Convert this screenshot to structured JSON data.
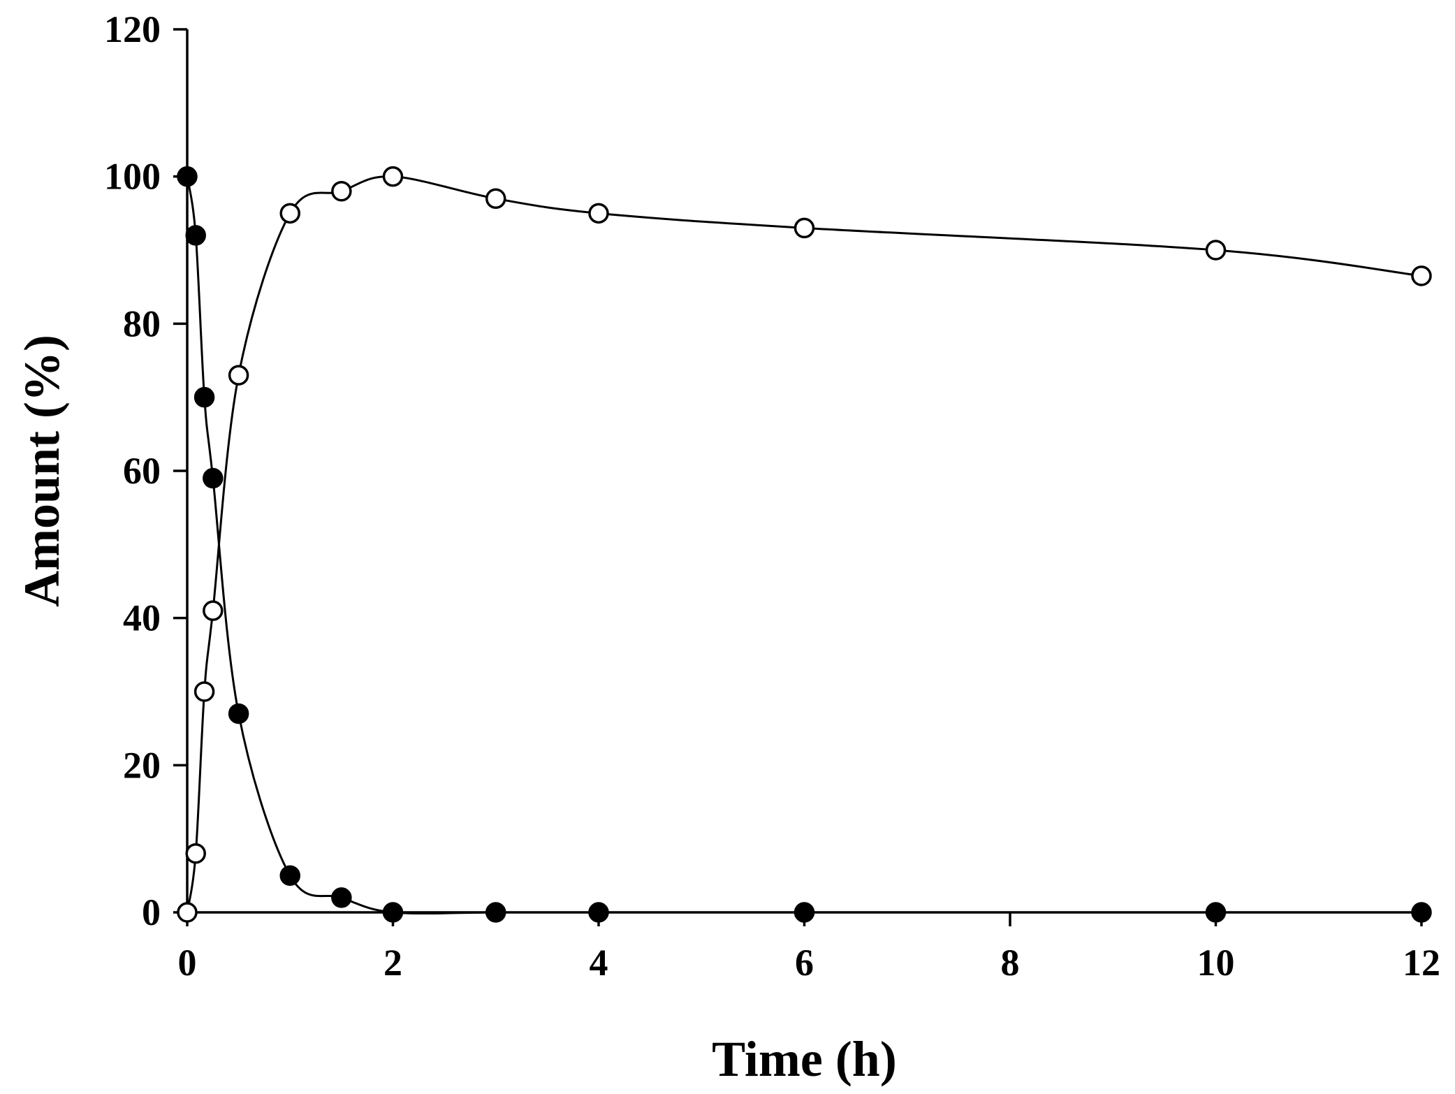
{
  "chart_data": {
    "type": "line",
    "title": "",
    "xlabel": "Time (h)",
    "ylabel": "Amount (%)",
    "xlim": [
      0,
      12
    ],
    "ylim": [
      0,
      120
    ],
    "xticks": [
      0,
      2,
      4,
      6,
      8,
      10,
      12
    ],
    "yticks": [
      0,
      20,
      40,
      60,
      80,
      100,
      120
    ],
    "xtick_labels": [
      "0",
      "2",
      "4",
      "6",
      "8",
      "10",
      "12"
    ],
    "ytick_labels": [
      "0",
      "20",
      "40",
      "60",
      "80",
      "100",
      "120"
    ],
    "grid": false,
    "legend": "none",
    "series": [
      {
        "marker": "filled-circle",
        "color": "#000000",
        "x": [
          0,
          0.083,
          0.167,
          0.25,
          0.5,
          1,
          1.5,
          2,
          3,
          4,
          6,
          10,
          12
        ],
        "y": [
          100,
          92,
          70,
          59,
          27,
          5,
          2,
          0,
          0,
          0,
          0,
          0,
          0
        ]
      },
      {
        "marker": "open-circle",
        "color": "#000000",
        "x": [
          0,
          0.083,
          0.167,
          0.25,
          0.5,
          1,
          1.5,
          2,
          3,
          4,
          6,
          10,
          12
        ],
        "y": [
          0,
          8,
          30,
          41,
          73,
          95,
          98,
          100,
          97,
          95,
          93,
          90,
          86.5
        ]
      }
    ]
  }
}
